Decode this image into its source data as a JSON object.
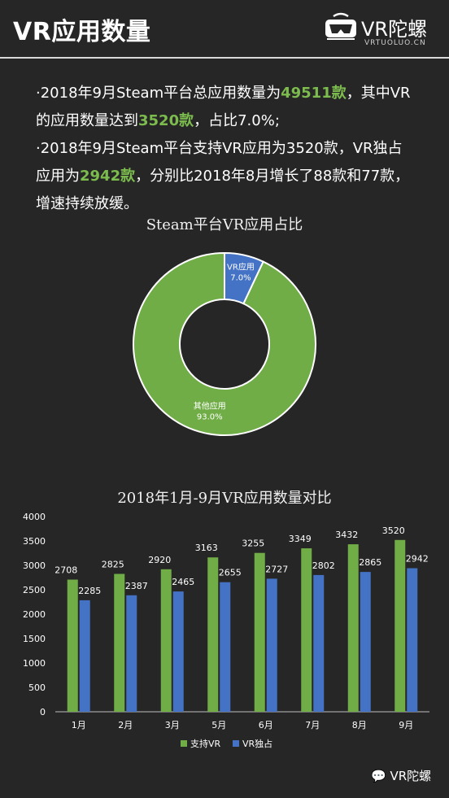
{
  "header": {
    "title": "VR应用数量",
    "logo_text": "VR陀螺",
    "logo_sub": "VRTUOLUO.CN"
  },
  "summary": {
    "l1_a": "·2018年9月Steam平台总应用数量为",
    "l1_b": "49511款",
    "l1_c": "，其中VR",
    "l2_a": "的应用数量达到",
    "l2_b": "3520款",
    "l2_c": "，占比7.0%;",
    "l3": "·2018年9月Steam平台支持VR应用为3520款，VR独占",
    "l4_a": "应用为",
    "l4_b": "2942款",
    "l4_c": "，分别比2018年8月增长了88款和77款，",
    "l5": "增速持续放缓。"
  },
  "colors": {
    "background": "#262626",
    "green": "#70ad47",
    "blue": "#4472c4",
    "highlight": "#7cbb4e"
  },
  "chart_data": [
    {
      "type": "pie",
      "title": "Steam平台VR应用占比",
      "slices": [
        {
          "label": "VR应用",
          "value": 7.0,
          "display": "7.0%",
          "color": "#4472c4"
        },
        {
          "label": "其他应用",
          "value": 93.0,
          "display": "93.0%",
          "color": "#70ad47"
        }
      ]
    },
    {
      "type": "bar",
      "title": "2018年1月-9月VR应用数量对比",
      "categories": [
        "1月",
        "2月",
        "3月",
        "5月",
        "6月",
        "7月",
        "8月",
        "9月"
      ],
      "series": [
        {
          "name": "支持VR",
          "values": [
            2708,
            2825,
            2920,
            3163,
            3255,
            3349,
            3432,
            3520
          ],
          "color": "#70ad47"
        },
        {
          "name": "VR独占",
          "values": [
            2285,
            2387,
            2465,
            2655,
            2727,
            2802,
            2865,
            2942
          ],
          "color": "#4472c4"
        }
      ],
      "ylim": [
        0,
        4000
      ],
      "yticks": [
        0,
        500,
        1000,
        1500,
        2000,
        2500,
        3000,
        3500,
        4000
      ],
      "legend": "bottom",
      "grid": false
    }
  ],
  "footer": {
    "badge": "VR陀螺"
  }
}
